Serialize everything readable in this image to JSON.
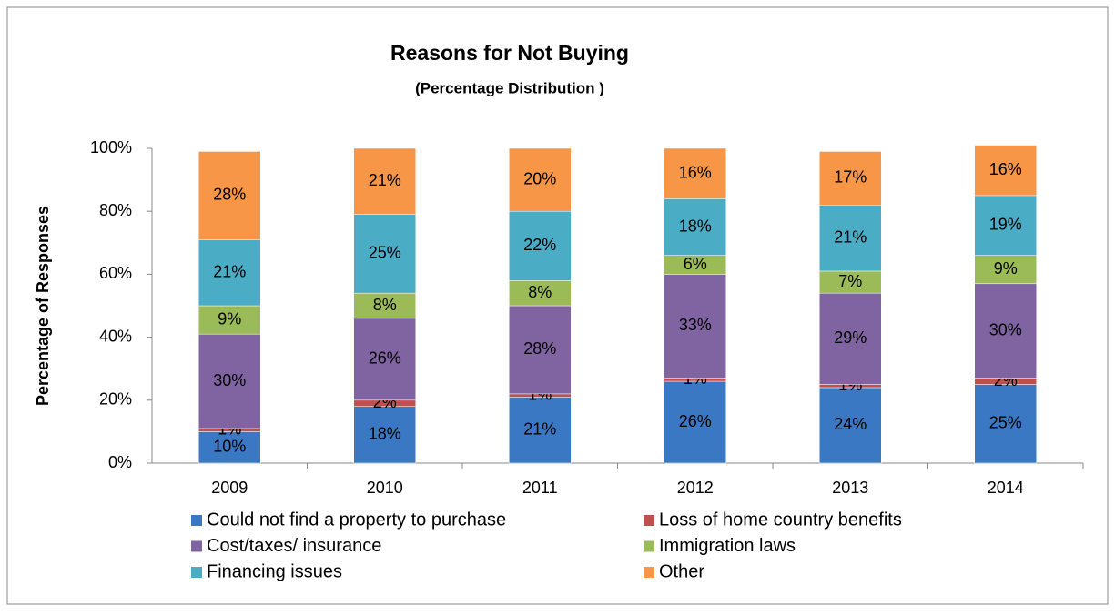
{
  "chart_data": {
    "type": "stacked_bar",
    "title": "Reasons for Not Buying",
    "subtitle": "(Percentage Distribution )",
    "y_label": "Percentage of Responses",
    "categories": [
      "2009",
      "2010",
      "2011",
      "2012",
      "2013",
      "2014"
    ],
    "series": [
      {
        "name": "Could not find a property to purchase",
        "color": "#3b78c4",
        "values": [
          10,
          18,
          21,
          26,
          24,
          25
        ],
        "value_labels": [
          "10%",
          "18%",
          "21%",
          "26%",
          "24%",
          "25%"
        ]
      },
      {
        "name": "Loss of home country benefits",
        "color": "#c0504d",
        "values": [
          1,
          2,
          1,
          1,
          1,
          2
        ],
        "value_labels": [
          "1%",
          "2%",
          "1%",
          "1%",
          "1%",
          "2%"
        ]
      },
      {
        "name": "Cost/taxes/ insurance",
        "color": "#8064a2",
        "values": [
          30,
          26,
          28,
          33,
          29,
          30
        ],
        "value_labels": [
          "30%",
          "26%",
          "28%",
          "33%",
          "29%",
          "30%"
        ]
      },
      {
        "name": "Immigration laws",
        "color": "#9bbb59",
        "values": [
          9,
          8,
          8,
          6,
          7,
          9
        ],
        "value_labels": [
          "9%",
          "8%",
          "8%",
          "6%",
          "7%",
          "9%"
        ]
      },
      {
        "name": "Financing issues",
        "color": "#4bacc6",
        "values": [
          21,
          25,
          22,
          18,
          21,
          19
        ],
        "value_labels": [
          "21%",
          "25%",
          "22%",
          "18%",
          "21%",
          "19%"
        ]
      },
      {
        "name": "Other",
        "color": "#f79646",
        "values": [
          28,
          21,
          20,
          16,
          17,
          16
        ],
        "value_labels": [
          "28%",
          "21%",
          "20%",
          "16%",
          "17%",
          "16%"
        ]
      }
    ],
    "ylim": [
      0,
      100
    ],
    "yticks": [
      {
        "value": 0,
        "label": "0%"
      },
      {
        "value": 20,
        "label": "20%"
      },
      {
        "value": 40,
        "label": "40%"
      },
      {
        "value": 60,
        "label": "60%"
      },
      {
        "value": 80,
        "label": "80%"
      },
      {
        "value": 100,
        "label": "100%"
      }
    ],
    "grid": false
  }
}
